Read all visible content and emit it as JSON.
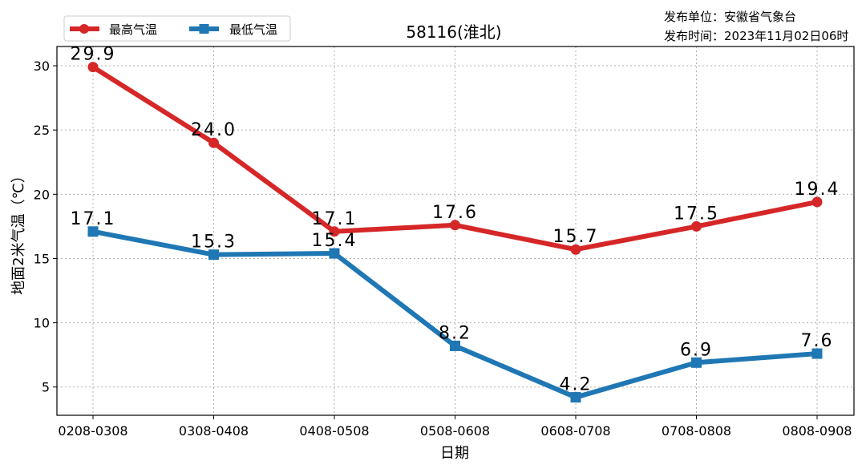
{
  "chart_data": {
    "type": "line",
    "title": "58116(淮北)",
    "publisher": "发布单位：安徽省气象台",
    "publish_time": "发布时间：2023年11月02日06时",
    "xlabel": "日期",
    "ylabel": "地面2米气温（℃）",
    "categories": [
      "0208-0308",
      "0308-0408",
      "0408-0508",
      "0508-0608",
      "0608-0708",
      "0708-0808",
      "0808-0908"
    ],
    "yticks": [
      "5",
      "10",
      "15",
      "20",
      "25",
      "30"
    ],
    "ylim": [
      2.8,
      31.5
    ],
    "grid": true,
    "legend_position": "top-left",
    "series": [
      {
        "name": "最高气温",
        "color": "#d62728",
        "marker": "circle",
        "values": [
          29.9,
          24.0,
          17.1,
          17.6,
          15.7,
          17.5,
          19.4
        ],
        "labels": [
          "29.9",
          "24.0",
          "17.1",
          "17.6",
          "15.7",
          "17.5",
          "19.4"
        ]
      },
      {
        "name": "最低气温",
        "color": "#1f77b4",
        "marker": "square",
        "values": [
          17.1,
          15.3,
          15.4,
          8.2,
          4.2,
          6.9,
          7.6
        ],
        "labels": [
          "17.1",
          "15.3",
          "15.4",
          "8.2",
          "4.2",
          "6.9",
          "7.6"
        ]
      }
    ]
  }
}
